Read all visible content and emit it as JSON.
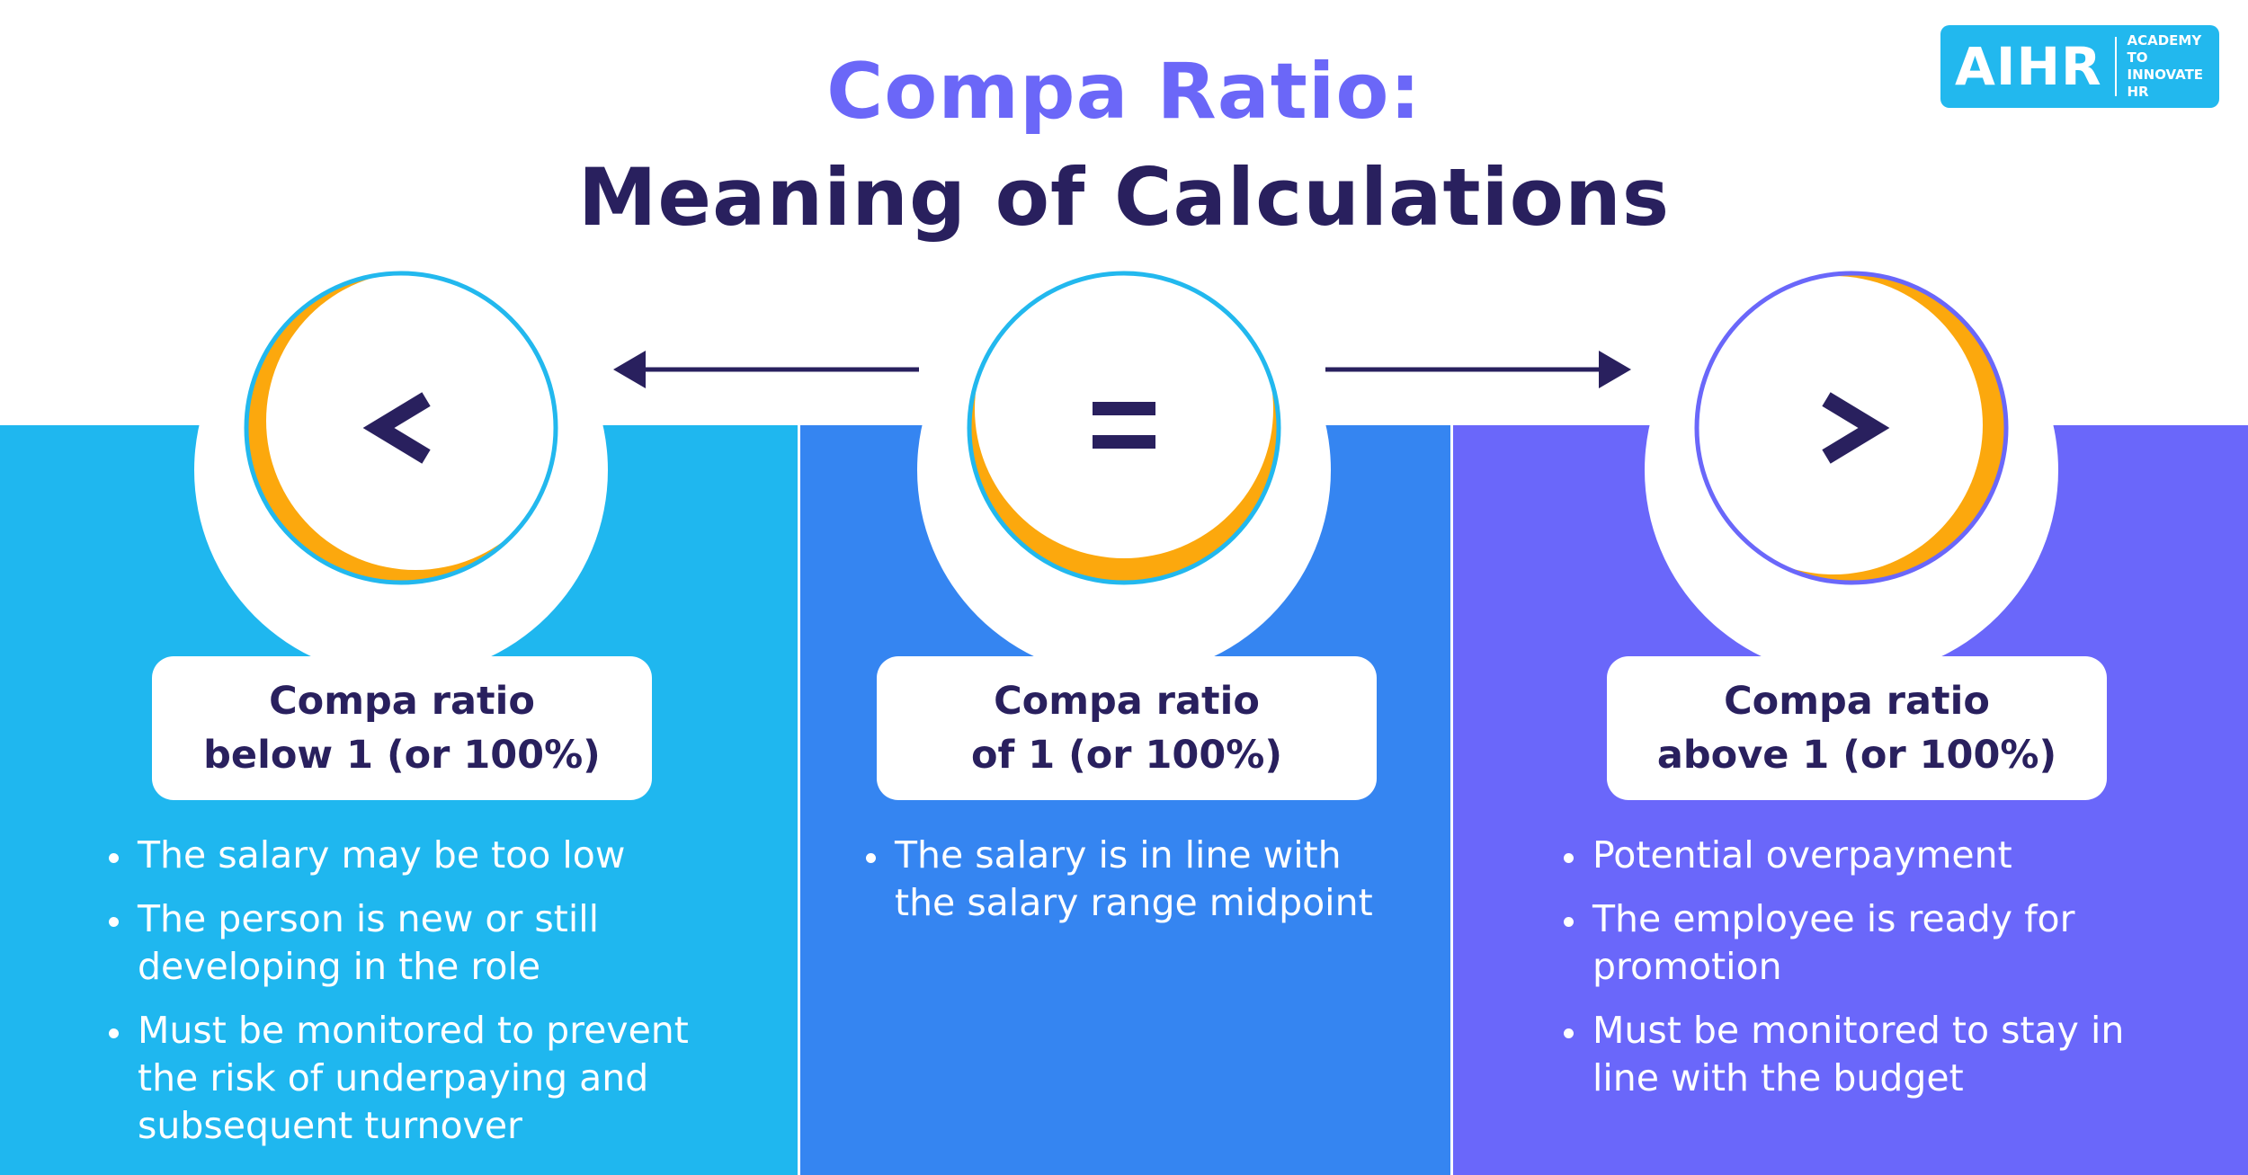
{
  "title": {
    "line1": "Compa Ratio:",
    "line2": "Meaning of Calculations"
  },
  "logo": {
    "text": "AIHR",
    "subtitle": "ACADEMY TO INNOVATE HR"
  },
  "colors": {
    "panel_left": "#1fb7ef",
    "panel_middle": "#3585f1",
    "panel_right": "#6a67fa",
    "accent_orange": "#fca80d",
    "title_purple": "#6b67f8",
    "dark_navy": "#29205e"
  },
  "columns": [
    {
      "symbol": "<",
      "symbol_icon": "less-than-icon",
      "heading_line1": "Compa ratio",
      "heading_line2": "below 1 (or 100%)",
      "bullets": [
        "The salary may be too low",
        "The person is new or still developing in the role",
        "Must be monitored to prevent the risk of underpaying and subsequent turnover"
      ]
    },
    {
      "symbol": "=",
      "symbol_icon": "equals-icon",
      "heading_line1": "Compa ratio",
      "heading_line2": "of 1 (or 100%)",
      "bullets": [
        "The salary is in line with the salary range midpoint"
      ]
    },
    {
      "symbol": ">",
      "symbol_icon": "greater-than-icon",
      "heading_line1": "Compa ratio",
      "heading_line2": "above 1 (or 100%)",
      "bullets": [
        "Potential overpayment",
        "The employee is ready for promotion",
        "Must be monitored to stay in line with the budget"
      ]
    }
  ]
}
